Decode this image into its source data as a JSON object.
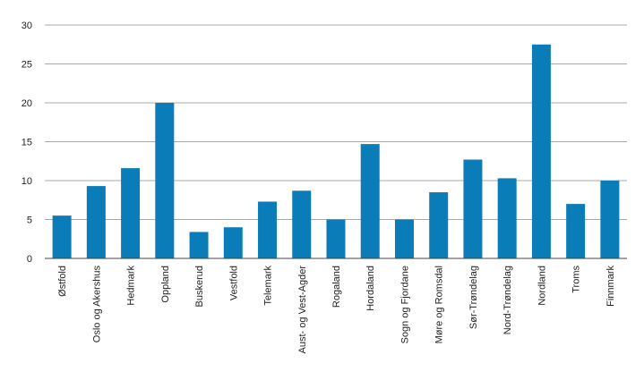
{
  "chart_data": {
    "type": "bar",
    "title": "",
    "xlabel": "",
    "ylabel": "",
    "ylim": [
      0,
      30
    ],
    "yticks": [
      0,
      5,
      10,
      15,
      20,
      25,
      30
    ],
    "grid": true,
    "legend": "none",
    "bar_color": "#0a7db8",
    "categories": [
      "Østfold",
      "Oslo og Akershus",
      "Hedmark",
      "Oppland",
      "Buskerud",
      "Vestfold",
      "Telemark",
      "Aust- og Vest-Agder",
      "Rogaland",
      "Hordaland",
      "Sogn og Fjordane",
      "Møre og Romsdal",
      "Sør-Trøndelag",
      "Nord-Trøndelag",
      "Nordland",
      "Troms",
      "Finnmark"
    ],
    "values": [
      5.5,
      9.3,
      11.6,
      20.0,
      3.4,
      4.0,
      7.3,
      8.7,
      5.0,
      14.7,
      5.0,
      8.5,
      12.7,
      10.3,
      27.5,
      7.0,
      10.0
    ]
  }
}
